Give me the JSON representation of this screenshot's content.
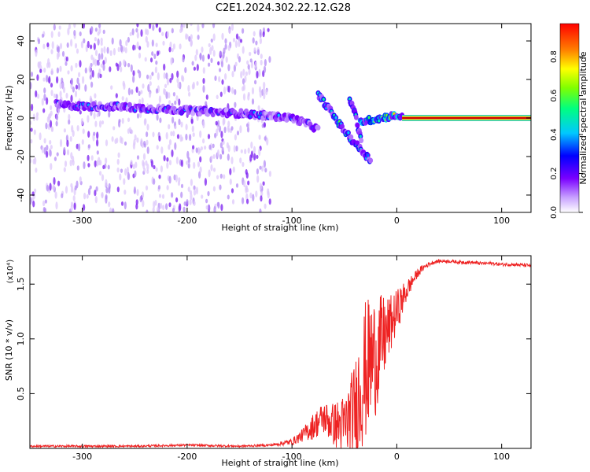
{
  "title": "C2E1.2024.302.22.12.G28",
  "colors": {
    "snr_line": "#ee2222",
    "spectrogram_dots": "#8a2be2",
    "track_core": "#d00000"
  },
  "chart_data": [
    {
      "type": "heatmap",
      "xlabel": "Height of straight line (km)",
      "ylabel": "Frequency (Hz)",
      "xlim": [
        -350,
        128
      ],
      "ylim": [
        -49,
        49
      ],
      "x_ticks": [
        -300,
        -200,
        -100,
        0,
        100
      ],
      "y_ticks": [
        -40,
        -20,
        0,
        20,
        40
      ],
      "colorbar": {
        "label": "Normalized spectral amplitude",
        "range": [
          0,
          0.97
        ],
        "ticks": [
          0.0,
          0.2,
          0.4,
          0.6,
          0.8
        ],
        "colormap": "white-violet-blue-cyan-green-yellow-red"
      },
      "tracks": [
        {
          "segment": "noisy-trace",
          "x": [
            -325,
            -300,
            -270,
            -240,
            -200,
            -170,
            -140,
            -120,
            -100,
            -85,
            -75
          ],
          "y": [
            7,
            6,
            6,
            5,
            4,
            3,
            2,
            1,
            0,
            -3,
            -6
          ],
          "amplitude": 0.3
        },
        {
          "segment": "doppler-arc",
          "x": [
            -75,
            -65,
            -55,
            -45,
            -35,
            -25
          ],
          "y": [
            12,
            5,
            -3,
            -10,
            -16,
            -22
          ],
          "amplitude": 0.45
        },
        {
          "segment": "second-arc",
          "x": [
            -45,
            -40,
            -37,
            -34
          ],
          "y": [
            10,
            3,
            -5,
            -12
          ],
          "amplitude": 0.4
        },
        {
          "segment": "near-zero",
          "x": [
            -35,
            -25,
            -15,
            -5,
            5
          ],
          "y": [
            -2,
            -1,
            0,
            1,
            1
          ],
          "amplitude": 0.6
        },
        {
          "segment": "steady-carrier",
          "x": [
            5,
            128
          ],
          "y": [
            0,
            0
          ],
          "amplitude": 0.97
        }
      ]
    },
    {
      "type": "line",
      "xlabel": "Height of straight line (km)",
      "ylabel": "SNR (10 * v/v)",
      "y_multiplier": "(x10⁴)",
      "xlim": [
        -350,
        128
      ],
      "ylim": [
        0,
        1.76
      ],
      "x_ticks": [
        -300,
        -200,
        -100,
        0,
        100
      ],
      "y_ticks": [
        0.5,
        1.0,
        1.5
      ],
      "series": [
        {
          "x": [
            -350,
            -300,
            -250,
            -200,
            -150,
            -120,
            -100,
            -90,
            -80,
            -70,
            -60,
            -50,
            -40,
            -35,
            -30,
            -25,
            -20,
            -15,
            -10,
            -5,
            0,
            5,
            10,
            15,
            20,
            25,
            30,
            35,
            40,
            50,
            60,
            70,
            80,
            90,
            100,
            110,
            128
          ],
          "y": [
            0.02,
            0.02,
            0.02,
            0.03,
            0.02,
            0.03,
            0.06,
            0.12,
            0.2,
            0.28,
            0.22,
            0.2,
            0.35,
            0.55,
            0.7,
            0.8,
            0.85,
            0.95,
            1.05,
            1.15,
            1.25,
            1.35,
            1.45,
            1.53,
            1.6,
            1.65,
            1.68,
            1.7,
            1.71,
            1.71,
            1.7,
            1.7,
            1.69,
            1.69,
            1.68,
            1.68,
            1.67
          ],
          "noise_amplitude": [
            0.01,
            0.01,
            0.01,
            0.01,
            0.01,
            0.01,
            0.03,
            0.06,
            0.12,
            0.15,
            0.2,
            0.3,
            0.45,
            0.6,
            0.65,
            0.6,
            0.55,
            0.45,
            0.35,
            0.25,
            0.2,
            0.15,
            0.1,
            0.06,
            0.04,
            0.03,
            0.02,
            0.02,
            0.015,
            0.015,
            0.015,
            0.015,
            0.015,
            0.015,
            0.015,
            0.015,
            0.015
          ]
        }
      ]
    }
  ]
}
